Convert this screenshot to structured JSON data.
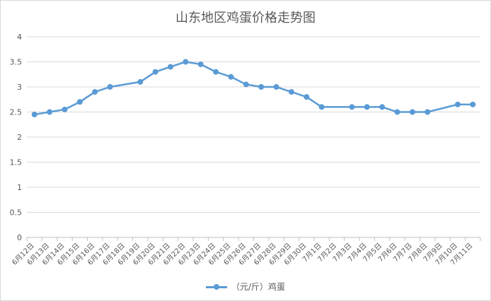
{
  "chart_data": {
    "type": "line",
    "title": "山东地区鸡蛋价格走势图",
    "xlabel": "",
    "ylabel": "",
    "ylim": [
      0,
      4
    ],
    "yticks": [
      "0",
      "0.5",
      "1",
      "1.5",
      "2",
      "2.5",
      "3",
      "3.5",
      "4"
    ],
    "grid": "horizontal",
    "legend_position": "bottom",
    "categories": [
      "6月12日",
      "6月13日",
      "6月14日",
      "6月15日",
      "6月16日",
      "6月17日",
      "6月18日",
      "6月19日",
      "6月20日",
      "6月21日",
      "6月22日",
      "6月23日",
      "6月24日",
      "6月25日",
      "6月26日",
      "6月27日",
      "6月28日",
      "6月29日",
      "6月30日",
      "7月1日",
      "7月2日",
      "7月3日",
      "7月4日",
      "7月5日",
      "7月6日",
      "7月7日",
      "7月8日",
      "7月9日",
      "7月10日",
      "7月11日"
    ],
    "series": [
      {
        "name": "（元/斤）鸡蛋",
        "color": "#5b9bd5",
        "values": [
          2.45,
          2.5,
          2.55,
          2.7,
          2.9,
          3.0,
          null,
          3.1,
          3.3,
          3.4,
          3.5,
          3.45,
          3.3,
          3.2,
          3.05,
          3.0,
          3.0,
          2.9,
          2.8,
          2.6,
          null,
          2.6,
          2.6,
          2.6,
          2.5,
          2.5,
          2.5,
          null,
          2.65,
          2.65
        ]
      }
    ]
  }
}
